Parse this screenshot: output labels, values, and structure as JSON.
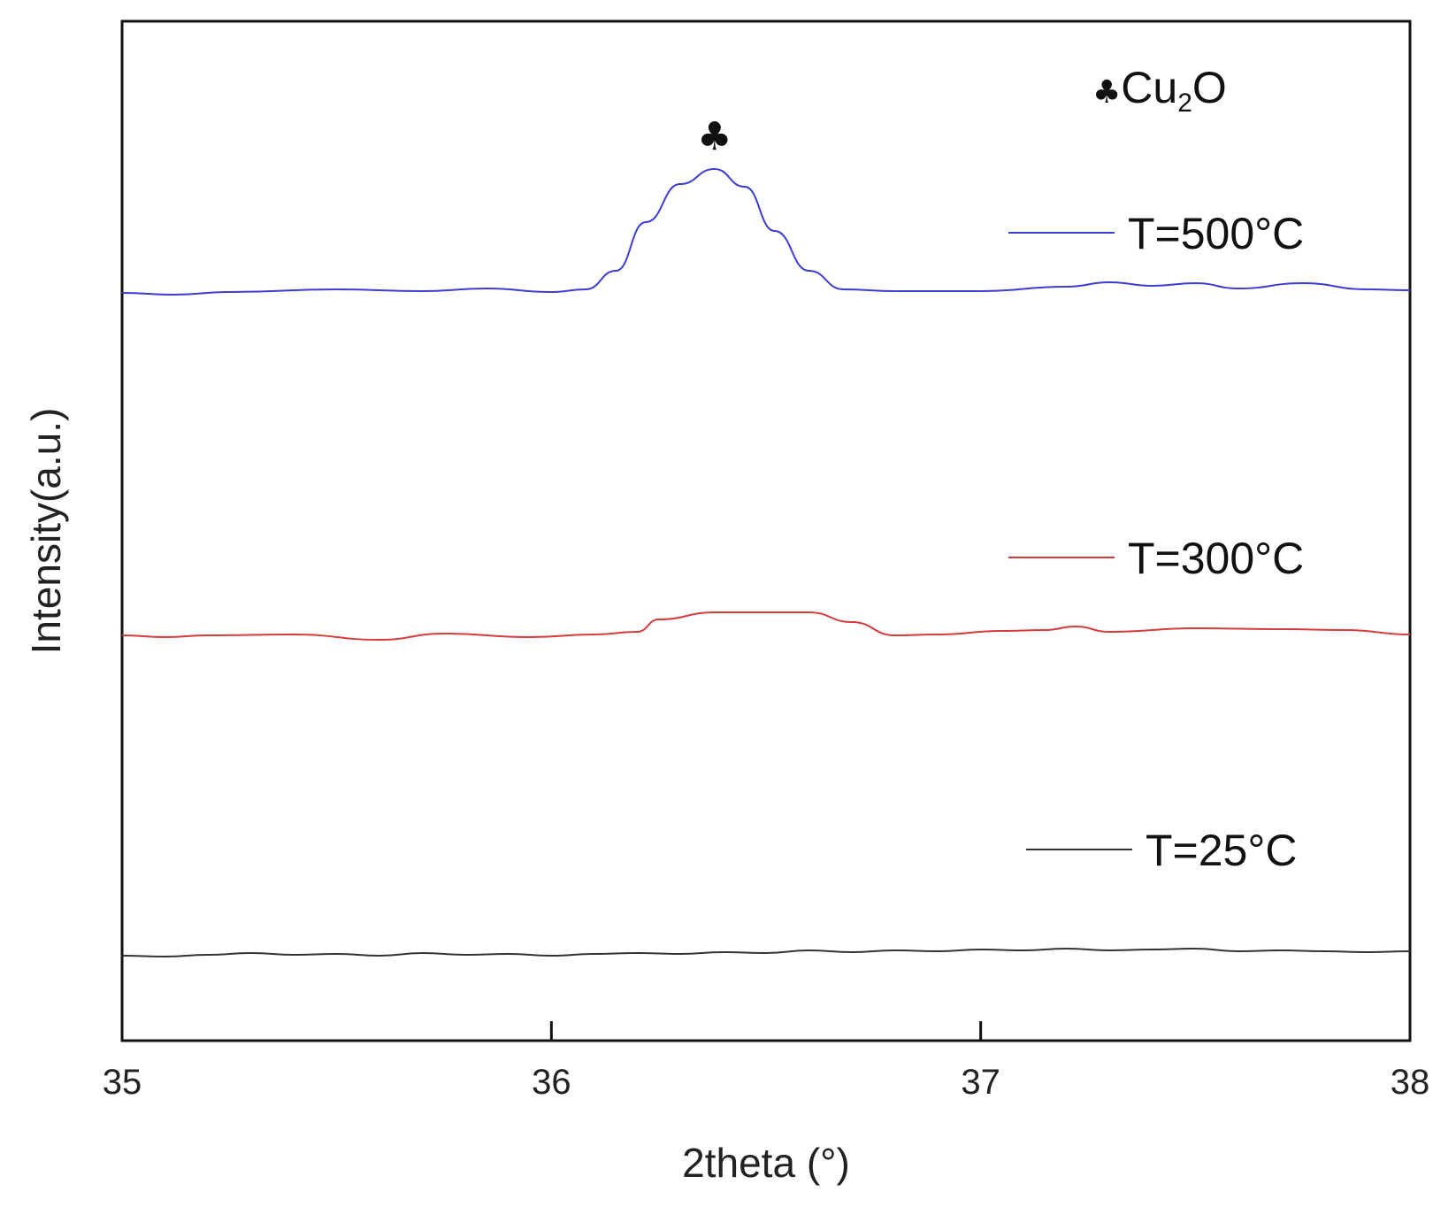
{
  "chart_data": {
    "type": "line",
    "title": "",
    "xlabel": "2theta (°)",
    "ylabel": "Intensity(a.u.)",
    "xlim": [
      35,
      38
    ],
    "xticks": [
      35,
      36,
      37,
      38
    ],
    "y_ticks_shown": false,
    "grid": false,
    "legend_placement": "right, next to each curve",
    "annotation": {
      "symbol": "♣",
      "formula_main": "Cu",
      "formula_sub": "2",
      "formula_end": "O",
      "peak_x": 36.38
    },
    "series": [
      {
        "name": "T=500°C",
        "color": "#3b3bd6",
        "x": [
          35.0,
          35.12,
          35.25,
          35.5,
          35.7,
          35.85,
          36.0,
          36.08,
          36.15,
          36.22,
          36.3,
          36.38,
          36.45,
          36.52,
          36.6,
          36.68,
          36.8,
          37.0,
          37.2,
          37.3,
          37.4,
          37.5,
          37.6,
          37.75,
          37.9,
          38.0
        ],
        "values": [
          0.5,
          0.3,
          0.6,
          0.9,
          0.7,
          1.0,
          0.6,
          0.9,
          3.0,
          8.5,
          12.8,
          14.5,
          12.5,
          7.5,
          3.0,
          0.9,
          0.7,
          0.7,
          1.2,
          1.7,
          1.3,
          1.6,
          1.0,
          1.6,
          0.9,
          0.8
        ]
      },
      {
        "name": "T=300°C",
        "color": "#d63a3a",
        "x": [
          35.0,
          35.1,
          35.2,
          35.4,
          35.6,
          35.75,
          35.95,
          36.1,
          36.2,
          36.25,
          36.38,
          36.5,
          36.6,
          36.7,
          36.8,
          36.9,
          37.05,
          37.15,
          37.22,
          37.3,
          37.5,
          37.7,
          37.85,
          38.0
        ],
        "values": [
          0.2,
          0.0,
          0.2,
          0.3,
          -0.3,
          0.4,
          0.0,
          0.3,
          0.6,
          2.0,
          2.8,
          2.8,
          2.8,
          1.7,
          0.2,
          0.3,
          0.7,
          0.8,
          1.2,
          0.6,
          1.0,
          0.9,
          0.8,
          0.3
        ]
      },
      {
        "name": "T=25°C",
        "color": "#333333",
        "x": [
          35.0,
          35.1,
          35.2,
          35.3,
          35.4,
          35.5,
          35.6,
          35.7,
          35.8,
          35.9,
          36.0,
          36.1,
          36.2,
          36.3,
          36.4,
          36.5,
          36.6,
          36.7,
          36.8,
          36.9,
          37.0,
          37.1,
          37.2,
          37.3,
          37.4,
          37.5,
          37.6,
          37.7,
          37.8,
          37.9,
          38.0
        ],
        "values": [
          0.0,
          -0.1,
          0.1,
          0.3,
          0.1,
          0.2,
          0.0,
          0.3,
          0.1,
          0.2,
          0.0,
          0.2,
          0.3,
          0.2,
          0.4,
          0.3,
          0.6,
          0.4,
          0.6,
          0.5,
          0.7,
          0.6,
          0.8,
          0.6,
          0.7,
          0.8,
          0.5,
          0.6,
          0.5,
          0.4,
          0.5
        ]
      }
    ]
  }
}
